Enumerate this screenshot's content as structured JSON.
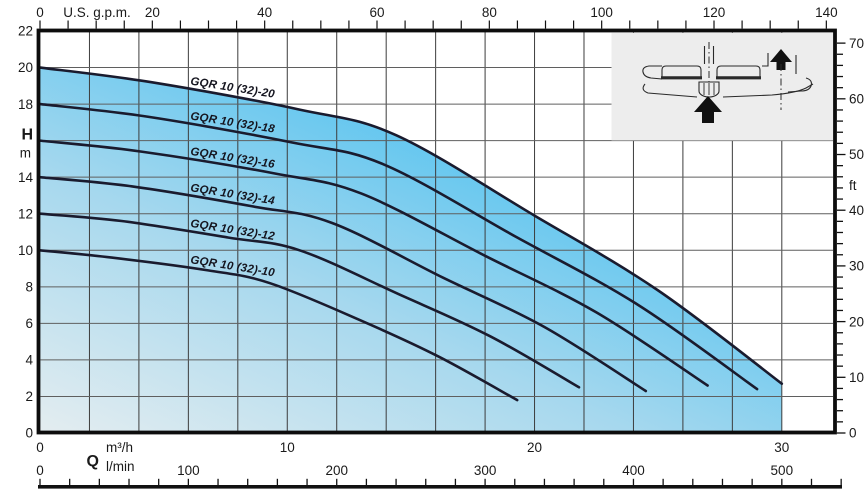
{
  "colors": {
    "fill_start": "#e4edf0",
    "fill_mid": "#a6d8ee",
    "fill_end": "#4ec1f0",
    "curve": "#1a1b2e",
    "grid_v": "#3c3c3c",
    "grid_h": "#5f5f5f",
    "border": "#0d0d0d",
    "tick": "#111111",
    "inset_bg": "#ededed",
    "schematic": "#2a2a2a",
    "text": "#1a1a1a"
  },
  "chart_data": {
    "type": "line",
    "description": "Pump head-flow performance curves, GQR 10 (32) series, with shaded operating envelope",
    "axes": {
      "top": {
        "label": "U.S. g.p.m.",
        "ticks": [
          0,
          20,
          40,
          60,
          80,
          100,
          120,
          140
        ],
        "minor_step": 5,
        "range": [
          0,
          141.5
        ]
      },
      "left": {
        "symbol": "H",
        "unit": "m",
        "ticks": [
          22,
          20,
          18,
          14,
          12,
          10,
          8,
          6,
          4,
          2,
          0
        ],
        "unit_slot": 16,
        "range": [
          0,
          22
        ],
        "grid_step": 2
      },
      "right": {
        "unit": "ft",
        "ticks": [
          70,
          60,
          50,
          40,
          30,
          20,
          10,
          0
        ],
        "minor_step": 2,
        "range": [
          0,
          72.2
        ]
      },
      "bottom_m3h": {
        "unit": "m³/h",
        "ticks": [
          0,
          10,
          20,
          30
        ],
        "range": [
          0,
          32.15
        ],
        "grid_step": 2
      },
      "bottom_lmin": {
        "symbol": "Q",
        "unit": "l/min",
        "ticks": [
          0,
          100,
          200,
          300,
          400,
          500
        ],
        "ruler_minor_step": 20,
        "ruler_max": 540
      }
    },
    "series": [
      {
        "name": "GQR 10 (32)-20",
        "points_q_h": [
          [
            0,
            20
          ],
          [
            4.5,
            19.2
          ],
          [
            10.5,
            17.7
          ],
          [
            14.4,
            16.3
          ],
          [
            20,
            11.9
          ],
          [
            25,
            7.8
          ],
          [
            30,
            2.7
          ]
        ]
      },
      {
        "name": "GQR 10 (32)-18",
        "points_q_h": [
          [
            0,
            18
          ],
          [
            4.4,
            17.3
          ],
          [
            10.2,
            15.9
          ],
          [
            13.9,
            14.7
          ],
          [
            19.3,
            10.7
          ],
          [
            24.2,
            7.0
          ],
          [
            29,
            2.4
          ]
        ]
      },
      {
        "name": "GQR 10 (32)-16",
        "points_q_h": [
          [
            0,
            16
          ],
          [
            4.1,
            15.4
          ],
          [
            9.5,
            14.2
          ],
          [
            13.0,
            13.1
          ],
          [
            18.0,
            9.7
          ],
          [
            22.5,
            6.6
          ],
          [
            27,
            2.6
          ]
        ]
      },
      {
        "name": "GQR 10 (32)-14",
        "points_q_h": [
          [
            0,
            14
          ],
          [
            3.7,
            13.5
          ],
          [
            8.6,
            12.4
          ],
          [
            11.8,
            11.5
          ],
          [
            16.3,
            8.5
          ],
          [
            20.4,
            5.8
          ],
          [
            24.5,
            2.3
          ]
        ]
      },
      {
        "name": "GQR 10 (32)-12",
        "points_q_h": [
          [
            0,
            12
          ],
          [
            3.3,
            11.6
          ],
          [
            7.6,
            10.7
          ],
          [
            10.5,
            10.0
          ],
          [
            14.5,
            7.6
          ],
          [
            18.2,
            5.3
          ],
          [
            21.8,
            2.5
          ]
        ]
      },
      {
        "name": "GQR 10 (32)-10",
        "points_q_h": [
          [
            0,
            10
          ],
          [
            2.9,
            9.6
          ],
          [
            6.8,
            8.9
          ],
          [
            9.3,
            8.2
          ],
          [
            12.9,
            6.2
          ],
          [
            16.1,
            4.2
          ],
          [
            19.3,
            1.8
          ]
        ]
      }
    ],
    "envelope_max_q_m3h": 30,
    "grid": true,
    "legend_position": "labels-on-curves"
  },
  "inset": {
    "kind": "pump cross-section schematic with flow arrows"
  }
}
